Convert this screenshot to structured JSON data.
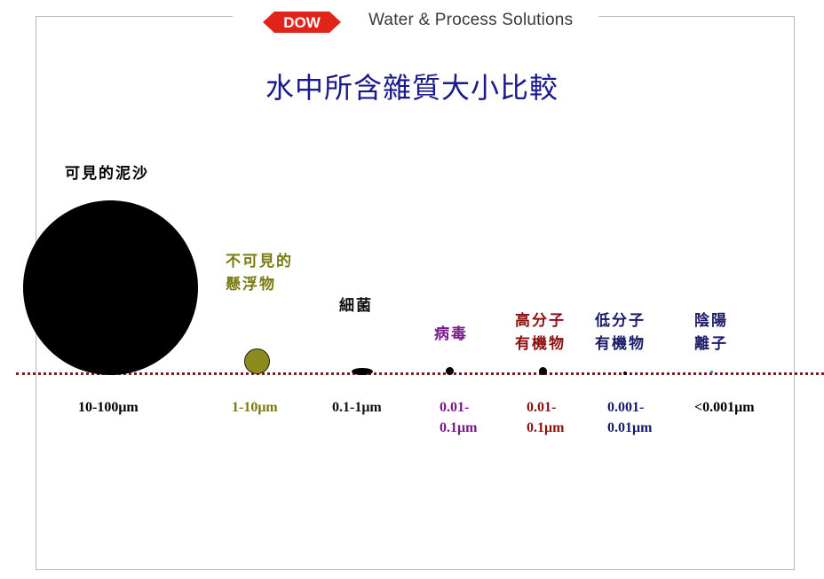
{
  "header": {
    "logo_text": "DOW",
    "brand": "Water & Process Solutions"
  },
  "title": "水中所含雜質大小比較",
  "categories": [
    {
      "label": "可見的泥沙",
      "size": "10-100μm",
      "color": "#000000"
    },
    {
      "label": "不可見的\n懸浮物",
      "size": "1-10μm",
      "color": "#7a7a10"
    },
    {
      "label": "細菌",
      "size": "0.1-1μm",
      "color": "#111111"
    },
    {
      "label": "病毒",
      "size": "0.01-\n0.1μm",
      "color": "#7a1a8a"
    },
    {
      "label": "高分子\n有機物",
      "size": "0.01-\n0.1μm",
      "color": "#8b1010"
    },
    {
      "label": "低分子\n有機物",
      "size": "0.001-\n0.01μm",
      "color": "#1a1a6a"
    },
    {
      "label": "陰陽\n離子",
      "size": "<0.001μm",
      "color": "#1a1a6a"
    }
  ],
  "colors": {
    "title": "#1a1a8c",
    "dotted_line": "#7a1e1e",
    "logo_red": "#e2231a",
    "suspended_particle": "#8c8c1e"
  }
}
